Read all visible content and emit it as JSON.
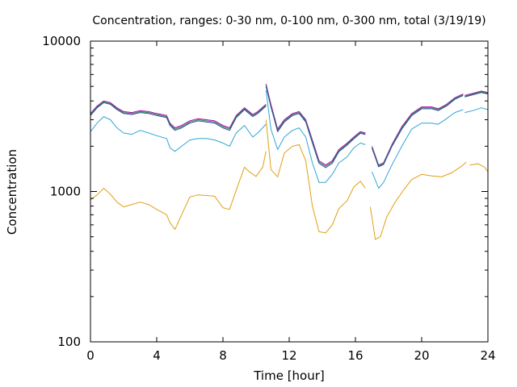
{
  "chart_data": {
    "type": "line",
    "title": "Concentration, ranges: 0-30 nm, 0-100 nm, 0-300 nm, total (3/19/19)",
    "xlabel": "Time [hour]",
    "ylabel": "Concentration",
    "xlim": [
      0,
      24
    ],
    "ylim": [
      100,
      10000
    ],
    "yscale": "log",
    "grid": false,
    "legend": "none",
    "x_ticks": [
      "0",
      "4",
      "8",
      "12",
      "16",
      "20",
      "24"
    ],
    "y_ticks": [
      "100",
      "1000",
      "10000"
    ],
    "series": [
      {
        "color": "#b000b0",
        "points": [
          [
            0,
            3300
          ],
          [
            0.4,
            3700
          ],
          [
            0.8,
            4000
          ],
          [
            1.2,
            3900
          ],
          [
            1.6,
            3600
          ],
          [
            2.0,
            3400
          ],
          [
            2.5,
            3350
          ],
          [
            3.0,
            3450
          ],
          [
            3.5,
            3400
          ],
          [
            4.0,
            3300
          ],
          [
            4.6,
            3200
          ],
          [
            4.8,
            2850
          ],
          [
            5.1,
            2650
          ],
          [
            5.5,
            2750
          ],
          [
            6.0,
            2950
          ],
          [
            6.5,
            3050
          ],
          [
            7.0,
            3000
          ],
          [
            7.5,
            2950
          ],
          [
            8.0,
            2750
          ],
          [
            8.4,
            2650
          ],
          [
            8.8,
            3200
          ],
          [
            9.3,
            3600
          ],
          [
            9.8,
            3250
          ],
          [
            10.1,
            3400
          ],
          [
            10.6,
            3800
          ],
          null,
          [
            10.6,
            5200
          ],
          [
            10.9,
            3800
          ],
          [
            11.3,
            2600
          ],
          [
            11.7,
            3000
          ],
          [
            12.2,
            3300
          ],
          [
            12.6,
            3400
          ],
          [
            13.0,
            3000
          ],
          [
            13.4,
            2200
          ],
          [
            13.8,
            1600
          ],
          [
            14.2,
            1500
          ],
          [
            14.6,
            1600
          ],
          [
            15.0,
            1900
          ],
          [
            15.5,
            2100
          ],
          [
            15.9,
            2300
          ],
          [
            16.3,
            2500
          ],
          [
            16.6,
            2450
          ],
          null,
          [
            17.0,
            2000
          ],
          [
            17.4,
            1500
          ],
          [
            17.7,
            1550
          ],
          [
            18.2,
            2050
          ],
          [
            18.8,
            2700
          ],
          [
            19.4,
            3300
          ],
          [
            20.0,
            3650
          ],
          [
            20.6,
            3650
          ],
          [
            21.0,
            3550
          ],
          [
            21.5,
            3800
          ],
          [
            22.0,
            4200
          ],
          [
            22.5,
            4450
          ],
          null,
          [
            22.6,
            4350
          ],
          [
            23.1,
            4500
          ],
          [
            23.6,
            4650
          ],
          [
            24,
            4550
          ]
        ]
      },
      {
        "color": "#2f8f4f",
        "points": [
          [
            0,
            3250
          ],
          [
            0.4,
            3650
          ],
          [
            0.8,
            3950
          ],
          [
            1.2,
            3850
          ],
          [
            1.6,
            3550
          ],
          [
            2.0,
            3350
          ],
          [
            2.5,
            3300
          ],
          [
            3.0,
            3400
          ],
          [
            3.5,
            3350
          ],
          [
            4.0,
            3250
          ],
          [
            4.6,
            3150
          ],
          [
            4.8,
            2800
          ],
          [
            5.1,
            2600
          ],
          [
            5.5,
            2700
          ],
          [
            6.0,
            2900
          ],
          [
            6.5,
            3000
          ],
          [
            7.0,
            2950
          ],
          [
            7.5,
            2900
          ],
          [
            8.0,
            2700
          ],
          [
            8.4,
            2600
          ],
          [
            8.8,
            3150
          ],
          [
            9.3,
            3550
          ],
          [
            9.8,
            3200
          ],
          [
            10.1,
            3350
          ],
          [
            10.6,
            3750
          ],
          null,
          [
            10.6,
            5100
          ],
          [
            10.9,
            3700
          ],
          [
            11.3,
            2550
          ],
          [
            11.7,
            2950
          ],
          [
            12.2,
            3250
          ],
          [
            12.6,
            3350
          ],
          [
            13.0,
            2950
          ],
          [
            13.4,
            2150
          ],
          [
            13.8,
            1570
          ],
          [
            14.2,
            1470
          ],
          [
            14.6,
            1570
          ],
          [
            15.0,
            1870
          ],
          [
            15.5,
            2070
          ],
          [
            15.9,
            2270
          ],
          [
            16.3,
            2470
          ],
          [
            16.6,
            2420
          ],
          null,
          [
            17.0,
            1970
          ],
          [
            17.4,
            1480
          ],
          [
            17.7,
            1530
          ],
          [
            18.2,
            2020
          ],
          [
            18.8,
            2650
          ],
          [
            19.4,
            3250
          ],
          [
            20.0,
            3600
          ],
          [
            20.6,
            3600
          ],
          [
            21.0,
            3500
          ],
          [
            21.5,
            3750
          ],
          [
            22.0,
            4150
          ],
          [
            22.5,
            4400
          ],
          null,
          [
            22.6,
            4300
          ],
          [
            23.1,
            4450
          ],
          [
            23.6,
            4600
          ],
          [
            24,
            4500
          ]
        ]
      },
      {
        "color": "#2a4a9a",
        "points": [
          [
            0,
            3200
          ],
          [
            0.4,
            3600
          ],
          [
            0.8,
            3900
          ],
          [
            1.2,
            3800
          ],
          [
            1.6,
            3500
          ],
          [
            2.0,
            3300
          ],
          [
            2.5,
            3250
          ],
          [
            3.0,
            3350
          ],
          [
            3.5,
            3300
          ],
          [
            4.0,
            3200
          ],
          [
            4.6,
            3100
          ],
          [
            4.8,
            2750
          ],
          [
            5.1,
            2550
          ],
          [
            5.5,
            2650
          ],
          [
            6.0,
            2850
          ],
          [
            6.5,
            2950
          ],
          [
            7.0,
            2900
          ],
          [
            7.5,
            2850
          ],
          [
            8.0,
            2650
          ],
          [
            8.4,
            2550
          ],
          [
            8.8,
            3100
          ],
          [
            9.3,
            3500
          ],
          [
            9.8,
            3150
          ],
          [
            10.1,
            3300
          ],
          [
            10.6,
            3700
          ],
          null,
          [
            10.6,
            5000
          ],
          [
            10.9,
            3650
          ],
          [
            11.3,
            2500
          ],
          [
            11.7,
            2900
          ],
          [
            12.2,
            3200
          ],
          [
            12.6,
            3300
          ],
          [
            13.0,
            2900
          ],
          [
            13.4,
            2100
          ],
          [
            13.8,
            1540
          ],
          [
            14.2,
            1440
          ],
          [
            14.6,
            1540
          ],
          [
            15.0,
            1840
          ],
          [
            15.5,
            2040
          ],
          [
            15.9,
            2240
          ],
          [
            16.3,
            2440
          ],
          [
            16.6,
            2390
          ],
          null,
          [
            17.0,
            1940
          ],
          [
            17.4,
            1460
          ],
          [
            17.7,
            1510
          ],
          [
            18.2,
            1990
          ],
          [
            18.8,
            2600
          ],
          [
            19.4,
            3200
          ],
          [
            20.0,
            3550
          ],
          [
            20.6,
            3550
          ],
          [
            21.0,
            3450
          ],
          [
            21.5,
            3700
          ],
          [
            22.0,
            4100
          ],
          [
            22.5,
            4350
          ],
          null,
          [
            22.6,
            4250
          ],
          [
            23.1,
            4400
          ],
          [
            23.6,
            4550
          ],
          [
            24,
            4450
          ]
        ]
      },
      {
        "color": "#2ea6d6",
        "points": [
          [
            0,
            2500
          ],
          [
            0.4,
            2850
          ],
          [
            0.8,
            3150
          ],
          [
            1.2,
            3000
          ],
          [
            1.6,
            2650
          ],
          [
            2.0,
            2450
          ],
          [
            2.5,
            2400
          ],
          [
            3.0,
            2550
          ],
          [
            3.5,
            2450
          ],
          [
            4.0,
            2350
          ],
          [
            4.6,
            2250
          ],
          [
            4.8,
            1950
          ],
          [
            5.1,
            1850
          ],
          [
            5.5,
            2000
          ],
          [
            6.0,
            2200
          ],
          [
            6.5,
            2250
          ],
          [
            7.0,
            2250
          ],
          [
            7.5,
            2200
          ],
          [
            8.0,
            2100
          ],
          [
            8.4,
            2000
          ],
          [
            8.8,
            2450
          ],
          [
            9.3,
            2750
          ],
          [
            9.8,
            2300
          ],
          [
            10.1,
            2450
          ],
          [
            10.6,
            2800
          ],
          null,
          [
            10.6,
            4700
          ],
          [
            10.9,
            2600
          ],
          [
            11.3,
            1900
          ],
          [
            11.7,
            2300
          ],
          [
            12.2,
            2550
          ],
          [
            12.6,
            2650
          ],
          [
            13.0,
            2300
          ],
          [
            13.4,
            1550
          ],
          [
            13.8,
            1150
          ],
          [
            14.2,
            1150
          ],
          [
            14.6,
            1300
          ],
          [
            15.0,
            1550
          ],
          [
            15.5,
            1700
          ],
          [
            15.9,
            1950
          ],
          [
            16.3,
            2100
          ],
          [
            16.6,
            2050
          ],
          null,
          [
            17.0,
            1350
          ],
          [
            17.4,
            1050
          ],
          [
            17.7,
            1150
          ],
          [
            18.2,
            1500
          ],
          [
            18.8,
            2000
          ],
          [
            19.4,
            2600
          ],
          [
            20.0,
            2850
          ],
          [
            20.6,
            2850
          ],
          [
            21.0,
            2800
          ],
          [
            21.5,
            3050
          ],
          [
            22.0,
            3350
          ],
          [
            22.5,
            3500
          ],
          null,
          [
            22.6,
            3350
          ],
          [
            23.1,
            3450
          ],
          [
            23.6,
            3600
          ],
          [
            24,
            3500
          ]
        ]
      },
      {
        "color": "#e0a010",
        "points": [
          [
            0,
            880
          ],
          [
            0.4,
            950
          ],
          [
            0.8,
            1050
          ],
          [
            1.2,
            960
          ],
          [
            1.6,
            850
          ],
          [
            2.0,
            790
          ],
          [
            2.5,
            820
          ],
          [
            3.0,
            850
          ],
          [
            3.5,
            820
          ],
          [
            4.0,
            760
          ],
          [
            4.6,
            700
          ],
          [
            4.8,
            620
          ],
          [
            5.1,
            560
          ],
          [
            5.5,
            700
          ],
          [
            6.0,
            920
          ],
          [
            6.5,
            950
          ],
          [
            7.0,
            940
          ],
          [
            7.5,
            930
          ],
          [
            8.0,
            780
          ],
          [
            8.4,
            760
          ],
          [
            8.8,
            1020
          ],
          [
            9.3,
            1450
          ],
          [
            9.6,
            1350
          ],
          [
            10.0,
            1260
          ],
          [
            10.4,
            1450
          ],
          [
            10.6,
            1850
          ],
          null,
          [
            10.6,
            3000
          ],
          [
            10.9,
            1400
          ],
          [
            11.3,
            1250
          ],
          [
            11.7,
            1800
          ],
          [
            12.2,
            2000
          ],
          [
            12.6,
            2050
          ],
          [
            13.0,
            1600
          ],
          [
            13.4,
            800
          ],
          [
            13.8,
            540
          ],
          [
            14.2,
            530
          ],
          [
            14.6,
            600
          ],
          [
            15.0,
            770
          ],
          [
            15.5,
            870
          ],
          [
            15.9,
            1070
          ],
          [
            16.3,
            1170
          ],
          [
            16.6,
            1050
          ],
          null,
          [
            16.9,
            790
          ],
          [
            17.2,
            480
          ],
          [
            17.5,
            500
          ],
          [
            17.9,
            680
          ],
          [
            18.4,
            850
          ],
          [
            18.9,
            1020
          ],
          [
            19.4,
            1200
          ],
          [
            20.0,
            1300
          ],
          [
            20.6,
            1270
          ],
          [
            21.2,
            1250
          ],
          [
            21.8,
            1330
          ],
          [
            22.4,
            1470
          ],
          [
            22.7,
            1570
          ],
          null,
          [
            22.9,
            1500
          ],
          [
            23.4,
            1530
          ],
          [
            23.8,
            1450
          ],
          [
            24,
            1350
          ]
        ]
      }
    ]
  }
}
